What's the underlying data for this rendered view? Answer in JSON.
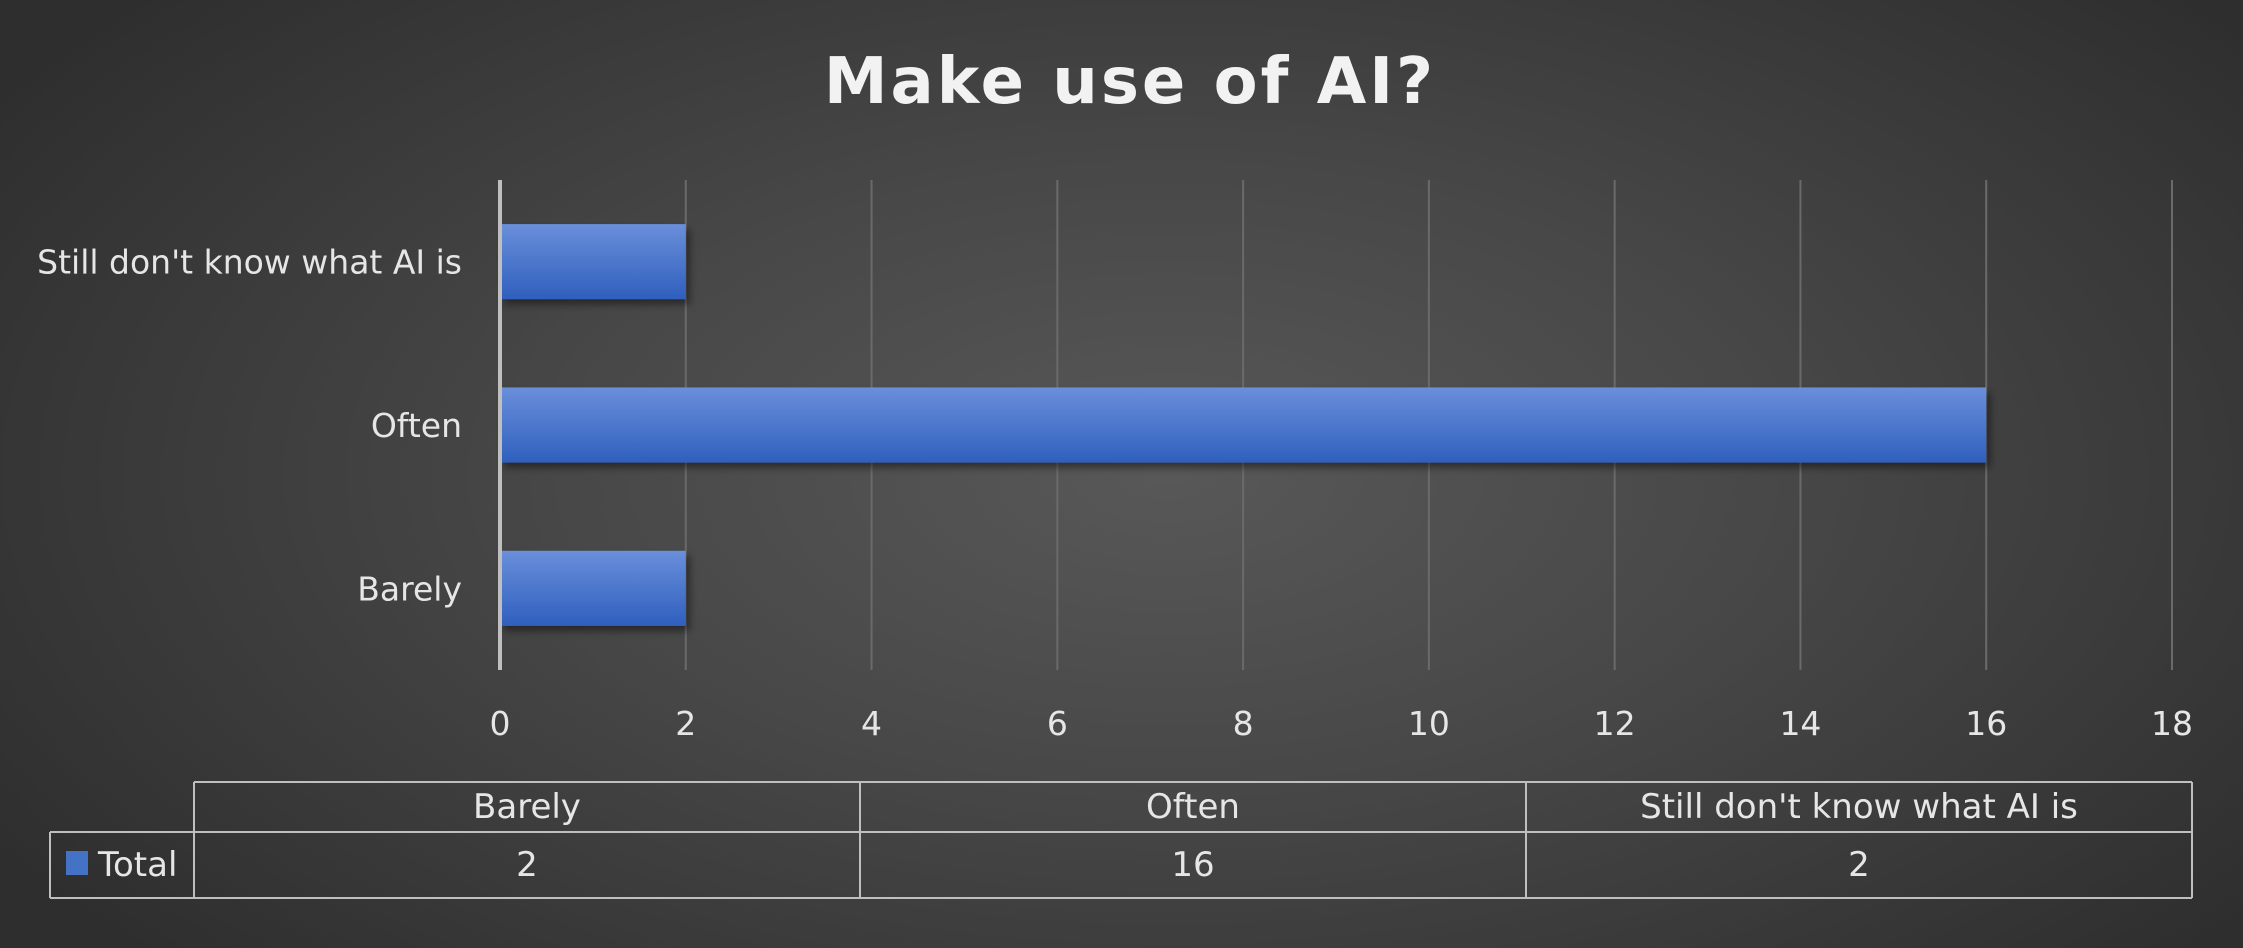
{
  "chart_data": {
    "type": "bar",
    "orientation": "horizontal",
    "title": "Make use of AI?",
    "categories": [
      "Barely",
      "Often",
      "Still don't know what AI is"
    ],
    "series": [
      {
        "name": "Total",
        "values": [
          2,
          16,
          2
        ]
      }
    ],
    "xlim": [
      0,
      18
    ],
    "x_ticks": [
      0,
      2,
      4,
      6,
      8,
      10,
      12,
      14,
      16,
      18
    ],
    "grid": true,
    "legend": "data-table",
    "data_table": {
      "headers": [
        "Barely",
        "Often",
        "Still don't know what AI is"
      ],
      "row_label": "Total",
      "values": [
        "2",
        "16",
        "2"
      ]
    },
    "colors": {
      "bar": "#4472c4",
      "bar_light": "#5f87d8",
      "background": "#474747",
      "grid": "#6a6a6a",
      "axis": "#bfbfbf",
      "text": "#e6e6e6"
    }
  }
}
